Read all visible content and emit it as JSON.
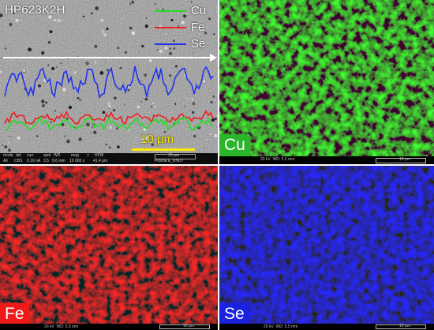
{
  "sem_panel": {
    "sample_label": "HP623K2H",
    "legend": [
      {
        "element": "Cu",
        "color": "#22dd22"
      },
      {
        "element": "Fe",
        "color": "#ee2020"
      },
      {
        "element": "Se",
        "color": "#2233ee"
      }
    ],
    "scale_bar": "10 μm",
    "info_bar": {
      "headers": [
        "mode",
        "det",
        "curr",
        "spot",
        "WD",
        "mag",
        "□",
        "HFW"
      ],
      "values": [
        "All",
        "CBS",
        "0.16 nA",
        "3.5",
        "9.6 mm",
        "10 000 x",
        "41.4 μm"
      ],
      "scale": "10 μm",
      "facility": "Prisma E_KNUT"
    }
  },
  "maps": [
    {
      "element": "Cu",
      "badge_color": "#2ab52a",
      "accelerating": "20 kV",
      "wd": "WD: 5.5 mm",
      "scale": "10 μm"
    },
    {
      "element": "Fe",
      "badge_color": "#ee1a1a",
      "accelerating": "20 kV",
      "wd": "WD: 5.5 mm",
      "scale": "10 μm"
    },
    {
      "element": "Se",
      "badge_color": "#1a22e0",
      "accelerating": "20 kV",
      "wd": "WD: 5.5 mm",
      "scale": "10 μm"
    }
  ]
}
